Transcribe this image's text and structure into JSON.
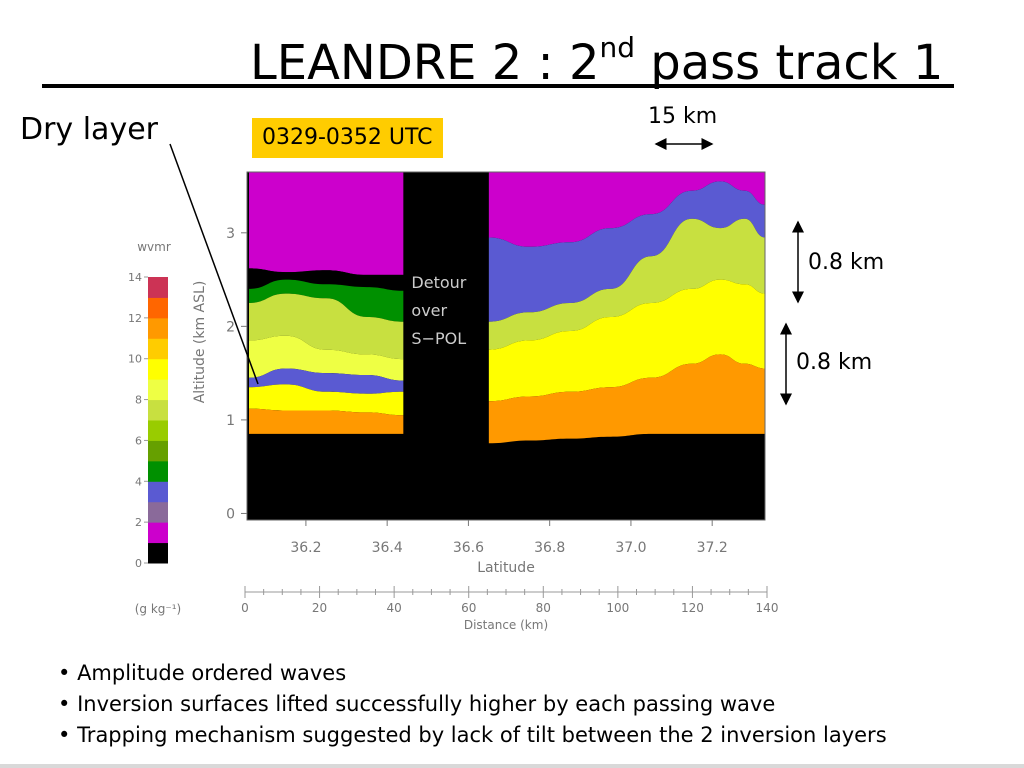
{
  "slide": {
    "title_main": "LEANDRE 2 : 2",
    "title_sup": "nd",
    "title_rest": " pass track 1",
    "dry_layer_label": "Dry layer",
    "time_badge": "0329-0352 UTC",
    "scale_15km": "15 km",
    "scale_08km_upper": "0.8 km",
    "scale_08km_lower": "0.8 km",
    "bullets": [
      "Amplitude ordered waves",
      "Inversion surfaces lifted successfully higher by each passing wave",
      "Trapping mechanism suggested by lack of tilt between the 2 inversion layers"
    ],
    "colors": {
      "badge": "#ffcc00",
      "accent_magenta": "#cc00cc"
    }
  },
  "chart_data": {
    "type": "heatmap",
    "title": "",
    "xlabel": "Latitude",
    "ylabel": "Altitude (km ASL)",
    "x_ticks": [
      "36.2",
      "36.4",
      "36.6",
      "36.8",
      "37.0",
      "37.2"
    ],
    "x_tick_values": [
      36.2,
      36.4,
      36.6,
      36.8,
      37.0,
      37.2
    ],
    "xlim": [
      36.055,
      37.33
    ],
    "y_ticks": [
      "0",
      "1",
      "2",
      "3"
    ],
    "y_tick_values": [
      0,
      1,
      2,
      3
    ],
    "ylim": [
      -0.07,
      3.65
    ],
    "x2label": "Distance (km)",
    "x2_ticks": [
      "0",
      "20",
      "40",
      "60",
      "80",
      "100",
      "120",
      "140"
    ],
    "x2_tick_values": [
      0,
      20,
      40,
      60,
      80,
      100,
      120,
      140
    ],
    "x2lim": [
      0,
      140
    ],
    "annotation": [
      "Detour",
      "over",
      "S−POL"
    ],
    "gap_latitude_range": [
      36.44,
      36.65
    ],
    "colorbar": {
      "title": "wvmr",
      "unit": "(g kg⁻¹)",
      "ticks": [
        "0",
        "2",
        "4",
        "6",
        "8",
        "10",
        "12",
        "14"
      ],
      "tick_values": [
        0,
        2,
        4,
        6,
        8,
        10,
        12,
        14
      ],
      "colors": [
        "#000000",
        "#cc00cc",
        "#8a6a9a",
        "#5a5ad2",
        "#009000",
        "#66a000",
        "#99cc00",
        "#c8e040",
        "#eeff44",
        "#ffff00",
        "#ffcc00",
        "#ff9900",
        "#ff6600",
        "#cc3355"
      ]
    },
    "layers": [
      {
        "name": "",
        "segment": "left",
        "x": [
          36.06,
          36.15,
          36.25,
          36.35,
          36.44
        ],
        "y_top": [
          3.65,
          3.65,
          3.65,
          3.65,
          3.65
        ],
        "y_bot": [
          2.62,
          2.58,
          2.6,
          2.55,
          2.55
        ],
        "color": "#cc00cc"
      },
      {
        "name": "",
        "segment": "left",
        "x": [
          36.06,
          36.15,
          36.25,
          36.35,
          36.44
        ],
        "y_top": [
          2.62,
          2.58,
          2.6,
          2.55,
          2.55
        ],
        "y_bot": [
          2.4,
          2.5,
          2.45,
          2.42,
          2.38
        ],
        "color": "#000000"
      },
      {
        "name": "",
        "segment": "left",
        "x": [
          36.06,
          36.15,
          36.25,
          36.35,
          36.44
        ],
        "y_top": [
          2.4,
          2.5,
          2.45,
          2.42,
          2.38
        ],
        "y_bot": [
          2.25,
          2.35,
          2.3,
          2.1,
          2.05
        ],
        "color": "#009000"
      },
      {
        "name": "",
        "segment": "left",
        "x": [
          36.06,
          36.15,
          36.25,
          36.35,
          36.44
        ],
        "y_top": [
          2.25,
          2.35,
          2.3,
          2.1,
          2.05
        ],
        "y_bot": [
          1.85,
          1.9,
          1.75,
          1.7,
          1.65
        ],
        "color": "#c8e040"
      },
      {
        "name": "",
        "segment": "left",
        "x": [
          36.06,
          36.15,
          36.25,
          36.35,
          36.44
        ],
        "y_top": [
          1.85,
          1.9,
          1.75,
          1.7,
          1.65
        ],
        "y_bot": [
          1.45,
          1.55,
          1.5,
          1.48,
          1.42
        ],
        "color": "#eeff44"
      },
      {
        "name": "",
        "segment": "left",
        "x": [
          36.06,
          36.15,
          36.25,
          36.35,
          36.44
        ],
        "y_top": [
          1.45,
          1.55,
          1.5,
          1.48,
          1.42
        ],
        "y_bot": [
          1.35,
          1.38,
          1.3,
          1.28,
          1.3
        ],
        "color": "#5a5ad2"
      },
      {
        "name": "",
        "segment": "left",
        "x": [
          36.06,
          36.15,
          36.25,
          36.35,
          36.44
        ],
        "y_top": [
          1.35,
          1.38,
          1.3,
          1.28,
          1.3
        ],
        "y_bot": [
          1.12,
          1.1,
          1.1,
          1.08,
          1.05
        ],
        "color": "#ffff00"
      },
      {
        "name": "",
        "segment": "left",
        "x": [
          36.06,
          36.15,
          36.25,
          36.35,
          36.44
        ],
        "y_top": [
          1.12,
          1.1,
          1.1,
          1.08,
          1.05
        ],
        "y_bot": [
          0.85,
          0.85,
          0.85,
          0.85,
          0.85
        ],
        "color": "#ff9900"
      },
      {
        "name": "",
        "segment": "right",
        "x": [
          36.65,
          36.75,
          36.85,
          36.95,
          37.05,
          37.15,
          37.22,
          37.28,
          37.33
        ],
        "y_top": [
          3.65,
          3.65,
          3.65,
          3.65,
          3.65,
          3.65,
          3.65,
          3.65,
          3.65
        ],
        "y_bot": [
          2.95,
          2.85,
          2.9,
          3.05,
          3.2,
          3.45,
          3.55,
          3.45,
          3.3
        ],
        "color": "#cc00cc"
      },
      {
        "name": "",
        "segment": "right",
        "x": [
          36.65,
          36.75,
          36.85,
          36.95,
          37.05,
          37.15,
          37.22,
          37.28,
          37.33
        ],
        "y_top": [
          2.95,
          2.85,
          2.9,
          3.05,
          3.2,
          3.45,
          3.55,
          3.45,
          3.3
        ],
        "y_bot": [
          2.05,
          2.15,
          2.25,
          2.4,
          2.75,
          3.15,
          3.05,
          3.15,
          2.95
        ],
        "color": "#5a5ad2"
      },
      {
        "name": "",
        "segment": "right",
        "x": [
          36.65,
          36.75,
          36.85,
          36.95,
          37.05,
          37.15,
          37.22,
          37.28,
          37.33
        ],
        "y_top": [
          2.05,
          2.15,
          2.25,
          2.4,
          2.75,
          3.15,
          3.05,
          3.15,
          2.95
        ],
        "y_bot": [
          1.75,
          1.85,
          1.95,
          2.1,
          2.25,
          2.4,
          2.5,
          2.45,
          2.35
        ],
        "color": "#c8e040"
      },
      {
        "name": "",
        "segment": "right",
        "x": [
          36.65,
          36.75,
          36.85,
          36.95,
          37.05,
          37.15,
          37.22,
          37.28,
          37.33
        ],
        "y_top": [
          1.75,
          1.85,
          1.95,
          2.1,
          2.25,
          2.4,
          2.5,
          2.45,
          2.35
        ],
        "y_bot": [
          1.2,
          1.25,
          1.3,
          1.35,
          1.45,
          1.6,
          1.7,
          1.6,
          1.55
        ],
        "color": "#ffff00"
      },
      {
        "name": "",
        "segment": "right",
        "x": [
          36.65,
          36.75,
          36.85,
          36.95,
          37.05,
          37.15,
          37.22,
          37.28,
          37.33
        ],
        "y_top": [
          1.2,
          1.25,
          1.3,
          1.35,
          1.45,
          1.6,
          1.7,
          1.6,
          1.55
        ],
        "y_bot": [
          0.75,
          0.78,
          0.8,
          0.82,
          0.85,
          0.85,
          0.85,
          0.85,
          0.85
        ],
        "color": "#ff9900"
      }
    ]
  }
}
